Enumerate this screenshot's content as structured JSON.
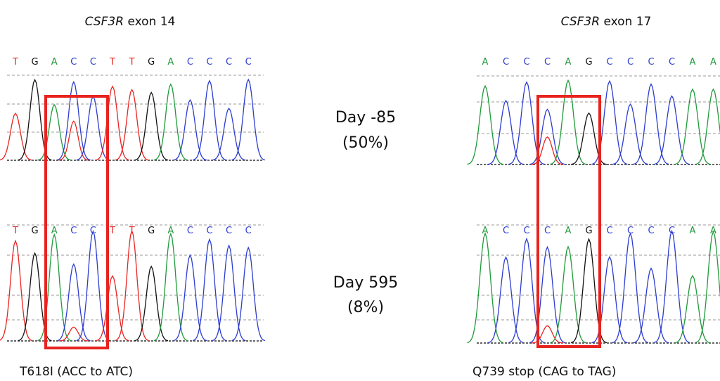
{
  "panels": [
    {
      "gene": "CSF3R",
      "exon": "exon 14",
      "rows": [
        {
          "bases": [
            "T",
            "G",
            "A",
            "C",
            "C",
            "T",
            "T",
            "G",
            "A",
            "C",
            "C",
            "C",
            "C"
          ]
        },
        {
          "bases": [
            "T",
            "G",
            "A",
            "C",
            "C",
            "T",
            "T",
            "G",
            "A",
            "C",
            "C",
            "C",
            "C"
          ]
        }
      ],
      "mutation": "T618I (ACC to ATC)"
    },
    {
      "gene": "CSF3R",
      "exon": "exon 17",
      "rows": [
        {
          "bases": [
            "A",
            "C",
            "C",
            "C",
            "A",
            "G",
            "C",
            "C",
            "C",
            "C",
            "A",
            "A"
          ]
        },
        {
          "bases": [
            "A",
            "C",
            "C",
            "C",
            "A",
            "G",
            "C",
            "C",
            "C",
            "C",
            "A",
            "A"
          ]
        }
      ],
      "mutation": "Q739 stop (CAG to TAG)"
    }
  ],
  "timepoints": [
    {
      "day": "Day -85",
      "fraction": "(50%)"
    },
    {
      "day": "Day 595",
      "fraction": "(8%)"
    }
  ]
}
